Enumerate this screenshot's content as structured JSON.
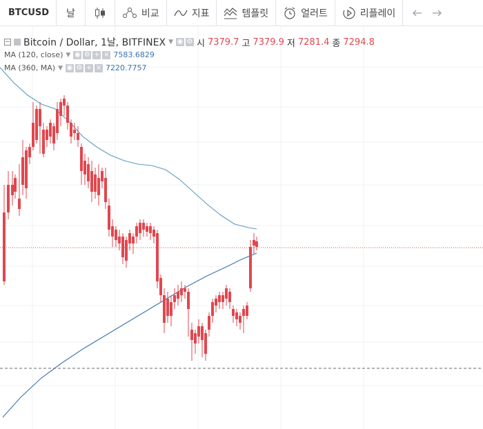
{
  "toolbar": {
    "symbol": "BTCUSD",
    "interval": "날",
    "compare": "비교",
    "indicators": "지표",
    "templates": "템플릿",
    "alert": "얼러트",
    "replay": "리플레이",
    "icons": [
      "candles-icon",
      "compare-icon",
      "indicators-icon",
      "templates-icon",
      "alert-icon",
      "replay-icon",
      "undo-icon",
      "redo-icon"
    ]
  },
  "legend": {
    "title": "Bitcoin / Dollar, 1날, BITFINEX",
    "open_label": "시",
    "open": "7379.7",
    "high_label": "고",
    "high": "7379.9",
    "low_label": "저",
    "low": "7281.4",
    "close_label": "종",
    "close": "7294.8",
    "ma1_label": "MA (120, close)",
    "ma1_value": "7583.6829",
    "ma2_label": "MA (360, MA)",
    "ma2_value": "7220.7757"
  },
  "colors": {
    "up": "#26a69a",
    "down": "#e0474f",
    "ma1": "#5b9bbf",
    "ma2": "#3a72b0",
    "price_line": "#e0474f",
    "grid": "#eef0f3",
    "dashed": "#666666"
  },
  "chart_data": {
    "type": "candlestick",
    "title": "Bitcoin / Dollar, 1날, BITFINEX",
    "ohlc_last": {
      "open": 7379.7,
      "high": 7379.9,
      "low": 7281.4,
      "close": 7294.8
    },
    "series": [
      {
        "name": "MA (120, close)",
        "last": 7583.6829
      },
      {
        "name": "MA (360, MA)",
        "last": 7220.7757
      }
    ]
  }
}
